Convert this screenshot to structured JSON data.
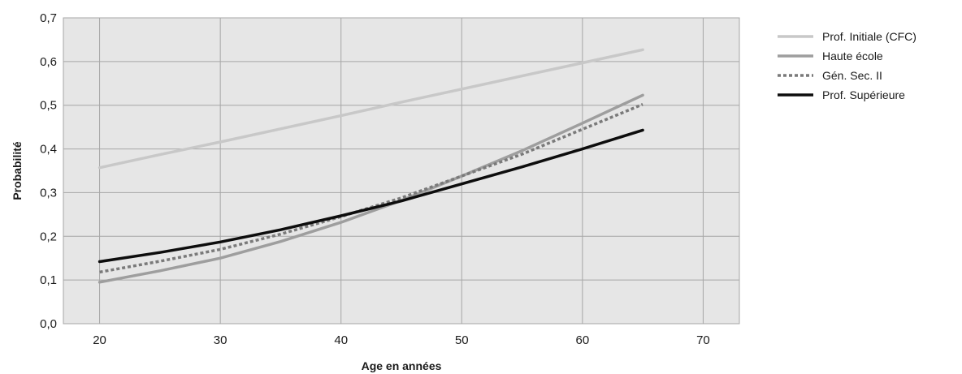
{
  "chart_data": {
    "type": "line",
    "title": "",
    "xlabel": "Age en années",
    "ylabel": "Probabilité",
    "xlim": [
      17,
      73
    ],
    "ylim": [
      0,
      0.7
    ],
    "x_ticks": [
      20,
      30,
      40,
      50,
      60,
      70
    ],
    "x_tick_labels": [
      "20",
      "30",
      "40",
      "50",
      "60",
      "70"
    ],
    "y_ticks": [
      0,
      0.1,
      0.2,
      0.3,
      0.4,
      0.5,
      0.6,
      0.7
    ],
    "y_tick_labels": [
      "0,0",
      "0,1",
      "0,2",
      "0,3",
      "0,4",
      "0,5",
      "0,6",
      "0,7"
    ],
    "grid": true,
    "plot_background": "#e6e6e6",
    "grid_color": "#a6a6a6",
    "legend_position": "right",
    "x": [
      20,
      25,
      30,
      35,
      40,
      45,
      50,
      55,
      60,
      65
    ],
    "series": [
      {
        "name": "Prof. Initiale (CFC)",
        "color": "#c8c8c8",
        "dash": "solid",
        "values": [
          0.357,
          0.387,
          0.416,
          0.446,
          0.476,
          0.507,
          0.537,
          0.567,
          0.597,
          0.627
        ]
      },
      {
        "name": "Haute école",
        "color": "#9e9e9e",
        "dash": "solid",
        "values": [
          0.095,
          0.121,
          0.15,
          0.188,
          0.232,
          0.282,
          0.338,
          0.396,
          0.459,
          0.523
        ]
      },
      {
        "name": "Gén. Sec. II",
        "color": "#7a7a7a",
        "dash": "dotted",
        "values": [
          0.118,
          0.143,
          0.17,
          0.205,
          0.245,
          0.288,
          0.338,
          0.388,
          0.445,
          0.502
        ]
      },
      {
        "name": "Prof. Supérieure",
        "color": "#0d0d0d",
        "dash": "solid",
        "values": [
          0.142,
          0.163,
          0.187,
          0.215,
          0.247,
          0.281,
          0.32,
          0.359,
          0.4,
          0.443
        ]
      }
    ]
  }
}
